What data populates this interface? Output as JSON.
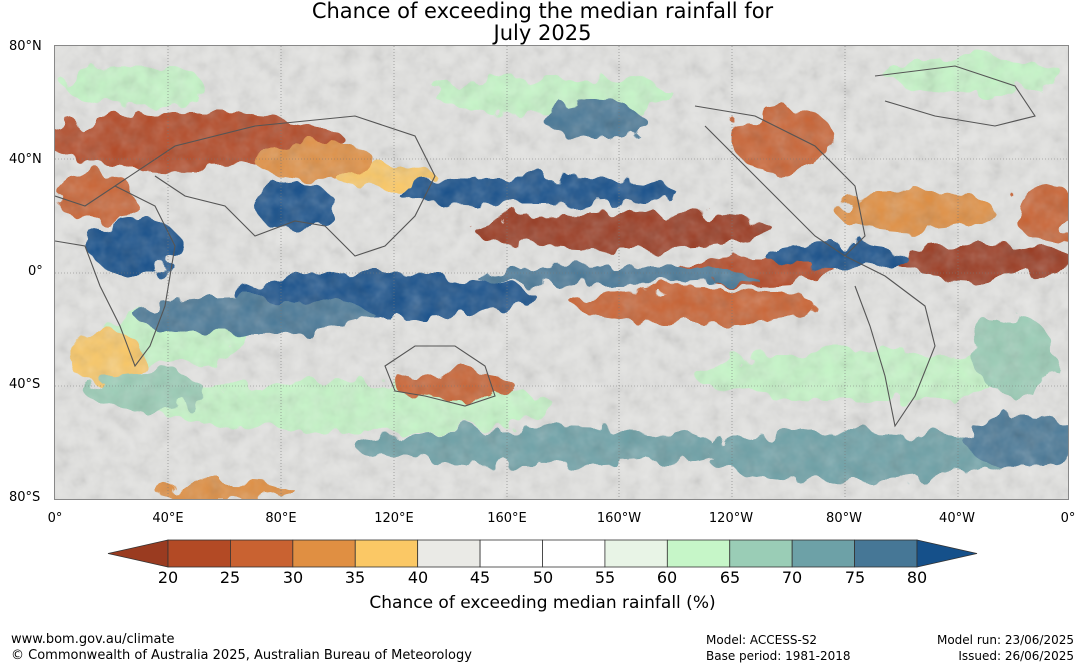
{
  "title": {
    "line1": "Chance of exceeding the median rainfall for",
    "line2": "July 2025"
  },
  "map": {
    "lat_labels": [
      "80°N",
      "40°N",
      "0°",
      "40°S",
      "80°S"
    ],
    "lon_labels": [
      "0°",
      "40°E",
      "80°E",
      "120°E",
      "160°E",
      "160°W",
      "120°W",
      "80°W",
      "40°W",
      "0°"
    ]
  },
  "colorbar": {
    "ticks": [
      "20",
      "25",
      "30",
      "35",
      "40",
      "45",
      "50",
      "55",
      "60",
      "65",
      "70",
      "75",
      "80"
    ],
    "colors": [
      "#9a3b20",
      "#b34a25",
      "#c96231",
      "#e08f42",
      "#fbc865",
      "#eaeae6",
      "#ffffff",
      "#ffffff",
      "#e8f4e6",
      "#c6f6c8",
      "#9acdb6",
      "#6da1a7",
      "#467796",
      "#15508a"
    ],
    "title": "Chance of exceeding median rainfall (%)"
  },
  "footer": {
    "url": "www.bom.gov.au/climate",
    "copyright": "© Commonwealth of Australia 2025, Australian Bureau of Meteorology",
    "model": "Model: ACCESS-S2",
    "base_period": "Base period: 1981-2018",
    "model_run": "Model run: 23/06/2025",
    "issued": "Issued: 26/06/2025"
  }
}
